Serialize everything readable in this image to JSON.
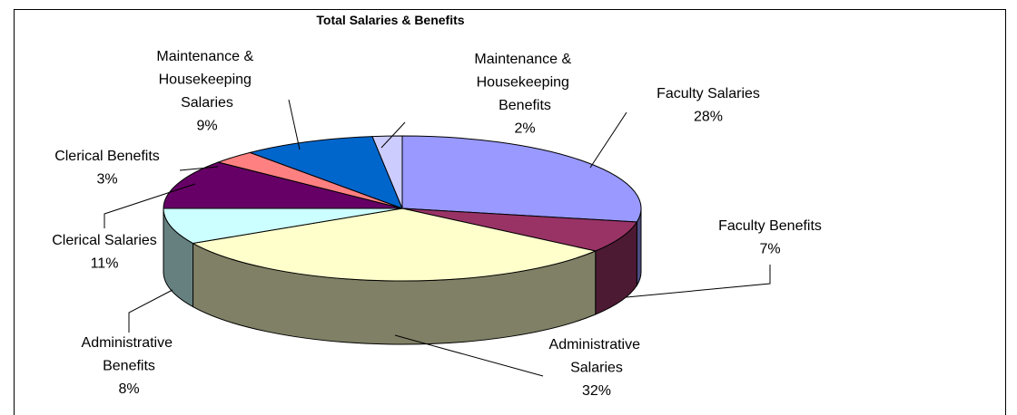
{
  "chart_data": {
    "type": "pie",
    "title": "Total Salaries & Benefits",
    "categories": [
      "Faculty Salaries",
      "Faculty Benefits",
      "Administrative Salaries",
      "Administrative Benefits",
      "Clerical Salaries",
      "Clerical Benefits",
      "Maintenance & Housekeeping Salaries",
      "Maintenance & Housekeeping Benefits"
    ],
    "values": [
      28,
      7,
      32,
      8,
      11,
      3,
      9,
      2
    ],
    "value_labels": [
      "28%",
      "7%",
      "32%",
      "8%",
      "11%",
      "3%",
      "9%",
      "2%"
    ],
    "colors": [
      "#9999ff",
      "#993366",
      "#ffffcc",
      "#ccffff",
      "#660066",
      "#ff8080",
      "#0066cc",
      "#ccccff"
    ]
  }
}
